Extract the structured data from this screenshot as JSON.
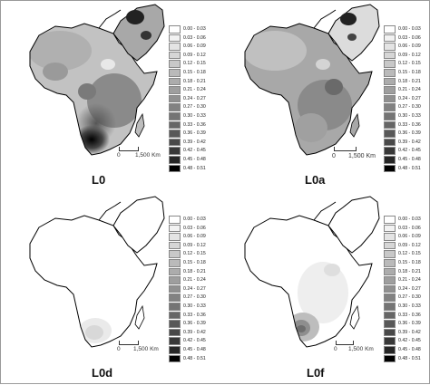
{
  "legend": {
    "classes": [
      {
        "range": "0.00 - 0.03",
        "color": "#ffffff"
      },
      {
        "range": "0.03 - 0.06",
        "color": "#f2f2f2"
      },
      {
        "range": "0.06 - 0.09",
        "color": "#e4e4e4"
      },
      {
        "range": "0.09 - 0.12",
        "color": "#d6d6d6"
      },
      {
        "range": "0.12 - 0.15",
        "color": "#c8c8c8"
      },
      {
        "range": "0.15 - 0.18",
        "color": "#bababa"
      },
      {
        "range": "0.18 - 0.21",
        "color": "#acacac"
      },
      {
        "range": "0.21 - 0.24",
        "color": "#9e9e9e"
      },
      {
        "range": "0.24 - 0.27",
        "color": "#909090"
      },
      {
        "range": "0.27 - 0.30",
        "color": "#828282"
      },
      {
        "range": "0.30 - 0.33",
        "color": "#747474"
      },
      {
        "range": "0.33 - 0.36",
        "color": "#666666"
      },
      {
        "range": "0.36 - 0.39",
        "color": "#585858"
      },
      {
        "range": "0.39 - 0.42",
        "color": "#494949"
      },
      {
        "range": "0.42 - 0.45",
        "color": "#383838"
      },
      {
        "range": "0.45 - 0.48",
        "color": "#262626"
      },
      {
        "range": "0.48 - 0.51",
        "color": "#000000"
      }
    ]
  },
  "panels": [
    {
      "label": "L0",
      "scale_zero": "0",
      "scale_text": "1,500 Km"
    },
    {
      "label": "L0a",
      "scale_zero": "0",
      "scale_text": "1,500 Km"
    },
    {
      "label": "L0d",
      "scale_zero": "0",
      "scale_text": "1,500 Km"
    },
    {
      "label": "L0f",
      "scale_zero": "0",
      "scale_text": "1,500 Km"
    }
  ]
}
